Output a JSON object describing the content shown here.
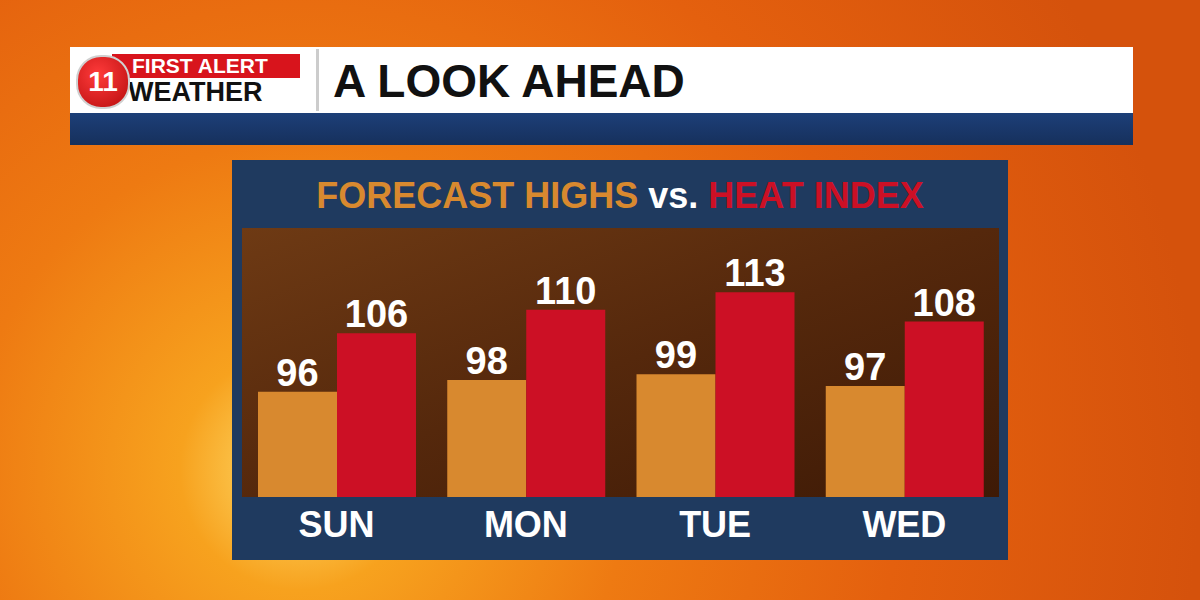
{
  "logo": {
    "number": "11",
    "line1": "FIRST ALERT",
    "line2": "WEATHER"
  },
  "chart_data": {
    "type": "bar",
    "title": "A LOOK AHEAD",
    "subtitle": "FORECAST HIGHS vs. HEAT INDEX",
    "categories": [
      "SUN",
      "MON",
      "TUE",
      "WED"
    ],
    "series": [
      {
        "name": "FORECAST HIGHS",
        "color": "#d8892f",
        "values": [
          96,
          98,
          99,
          97
        ]
      },
      {
        "name": "HEAT INDEX",
        "color": "#cc1025",
        "values": [
          106,
          110,
          113,
          108
        ]
      }
    ],
    "ylim": [
      78,
      124
    ],
    "data_labels": true,
    "tick_labels": "x",
    "grid": false
  }
}
